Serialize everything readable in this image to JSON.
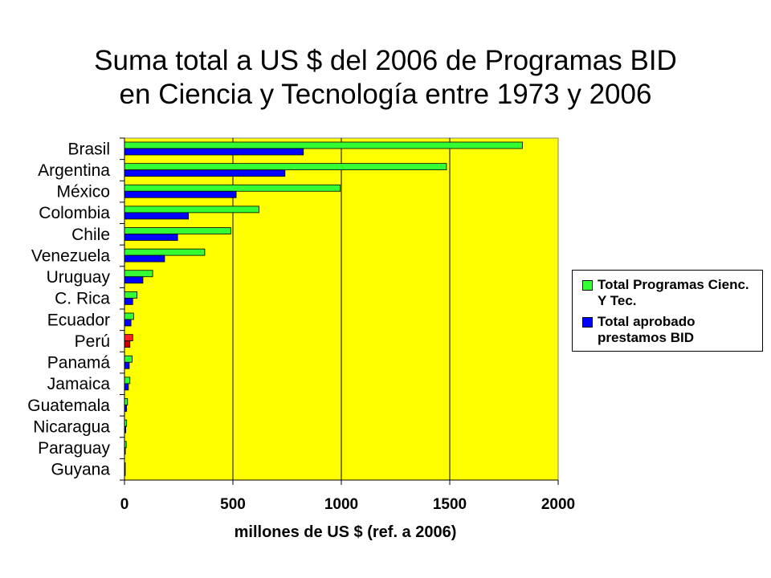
{
  "chart_data": {
    "type": "bar",
    "orientation": "horizontal",
    "title": "Suma total a US $ del 2006 de Programas BID en Ciencia y Tecnología entre 1973 y 2006",
    "title_lines": [
      "Suma total a US $ del 2006 de Programas BID",
      "en Ciencia y Tecnología entre 1973 y 2006"
    ],
    "xlabel": "millones de US $  (ref. a 2006)",
    "ylabel": "",
    "xlim": [
      0,
      2000
    ],
    "x_ticks": [
      0,
      500,
      1000,
      1500,
      2000
    ],
    "grid": "vertical",
    "plot_background": "#ffff00",
    "legend_position": "right",
    "highlight_category": "Perú",
    "categories": [
      "Guyana",
      "Paraguay",
      "Nicaragua",
      "Guatemala",
      "Jamaica",
      "Panamá",
      "Perú",
      "Ecuador",
      "C. Rica",
      "Uruguay",
      "Venezuela",
      "Chile",
      "Colombia",
      "México",
      "Argentina",
      "Brasil"
    ],
    "series": [
      {
        "name": "Total Programas Cienc. Y Tec.",
        "color": "#33ff33",
        "highlight_color": "#ff2222",
        "values": [
          2,
          8,
          10,
          14,
          25,
          35,
          38,
          42,
          58,
          130,
          370,
          490,
          620,
          995,
          1485,
          1835
        ]
      },
      {
        "name": "Total aprobado prestamos BID",
        "color": "#0000ff",
        "highlight_color": "#cc0000",
        "values": [
          1,
          4,
          6,
          10,
          18,
          22,
          25,
          30,
          38,
          85,
          185,
          245,
          295,
          515,
          740,
          825
        ]
      }
    ]
  }
}
